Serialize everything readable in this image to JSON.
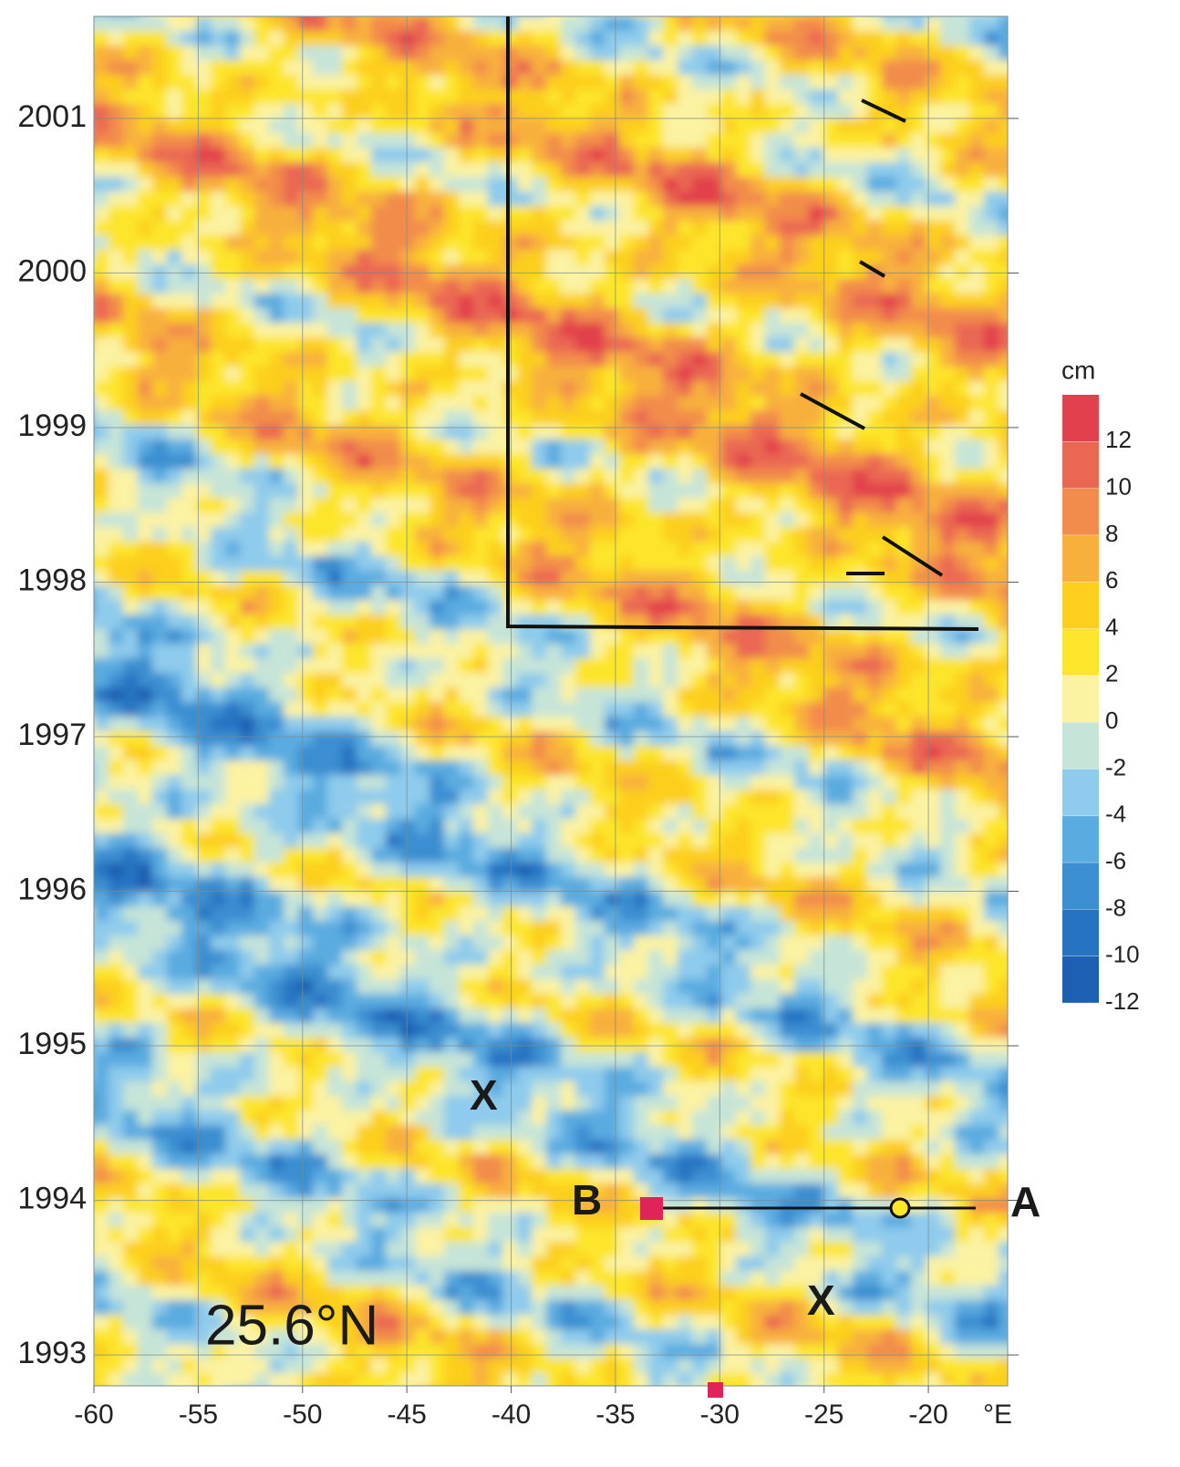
{
  "chart_data": {
    "type": "hovmoller",
    "x_unit": "°E",
    "xlim": [
      -60,
      -16.2
    ],
    "xticks": [
      -60,
      -55,
      -50,
      -45,
      -40,
      -35,
      -30,
      -25,
      -20
    ],
    "ylim": [
      1992.8,
      2001.66
    ],
    "yticks": [
      1993,
      1994,
      1995,
      1996,
      1997,
      1998,
      1999,
      2000,
      2001
    ],
    "grid": true,
    "colorbar": {
      "label": "cm",
      "lim": [
        -12,
        14
      ],
      "ticks": [
        -12,
        -10,
        -8,
        -6,
        -4,
        -2,
        0,
        2,
        4,
        6,
        8,
        10,
        12
      ],
      "colors": [
        "#1d5fb0",
        "#2673c2",
        "#3b8ed0",
        "#5aabe0",
        "#8ecbec",
        "#c6e4d8",
        "#fbf2a2",
        "#fde52c",
        "#fccf1e",
        "#f8b03c",
        "#f28c4c",
        "#ea6753",
        "#e2404c"
      ]
    },
    "annotations": [
      {
        "text": "25.6°N"
      },
      {
        "text": "X"
      },
      {
        "text": "X"
      },
      {
        "text": "A"
      },
      {
        "text": "B"
      }
    ]
  }
}
